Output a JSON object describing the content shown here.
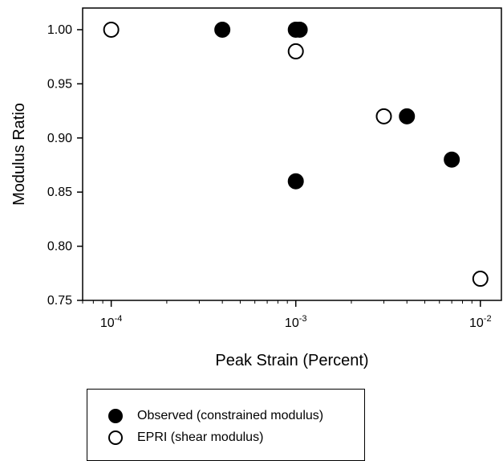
{
  "chart_data": {
    "type": "scatter",
    "xscale": "log",
    "xlim": [
      7e-05,
      0.013
    ],
    "ylim": [
      0.75,
      1.02
    ],
    "xlabel": "Peak Strain (Percent)",
    "ylabel": "Modulus Ratio",
    "x_ticks": [
      {
        "value": 0.0001,
        "base": "10",
        "exp": "-4"
      },
      {
        "value": 0.001,
        "base": "10",
        "exp": "-3"
      },
      {
        "value": 0.01,
        "base": "10",
        "exp": "-2"
      }
    ],
    "y_ticks": [
      "0.75",
      "0.80",
      "0.85",
      "0.90",
      "0.95",
      "1.00"
    ],
    "legend_position": "bottom",
    "series": [
      {
        "name": "Observed (constrained modulus)",
        "marker": "filled",
        "color": "#000000",
        "points": [
          {
            "x": 0.0004,
            "y": 1.0
          },
          {
            "x": 0.001,
            "y": 1.0
          },
          {
            "x": 0.00105,
            "y": 1.0
          },
          {
            "x": 0.001,
            "y": 0.86
          },
          {
            "x": 0.004,
            "y": 0.92
          },
          {
            "x": 0.007,
            "y": 0.88
          }
        ]
      },
      {
        "name": "EPRI (shear modulus)",
        "marker": "open",
        "color": "#000000",
        "points": [
          {
            "x": 0.0001,
            "y": 1.0
          },
          {
            "x": 0.001,
            "y": 0.98
          },
          {
            "x": 0.003,
            "y": 0.92
          },
          {
            "x": 0.01,
            "y": 0.77
          }
        ]
      }
    ]
  }
}
